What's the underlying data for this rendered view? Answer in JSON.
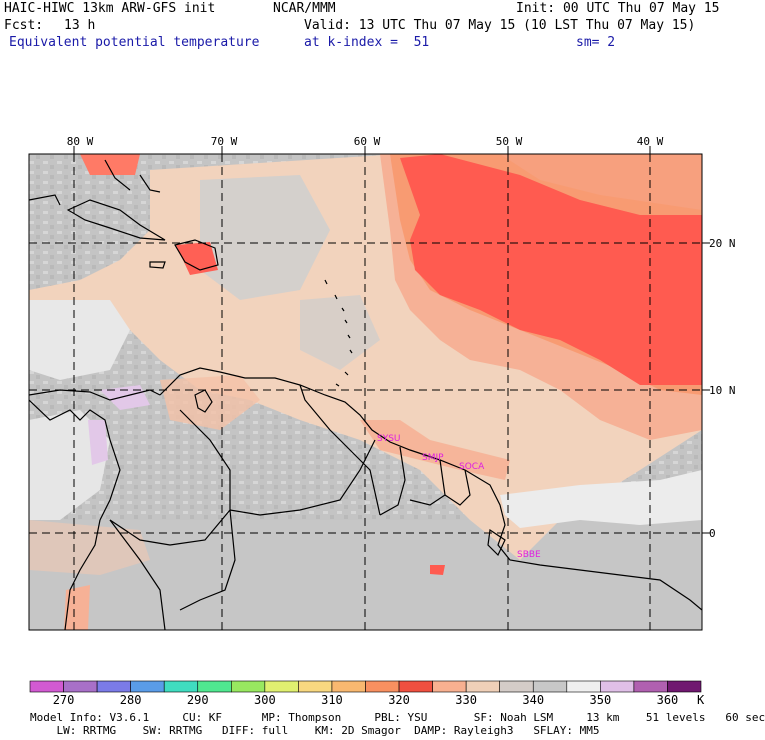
{
  "header": {
    "model_title": "HAIC-HIWC 13km ARW-GFS init",
    "org": "NCAR/MMM",
    "init": "Init: 00 UTC Thu 07 May 15",
    "fcst_label": "Fcst:",
    "fcst_value": "13 h",
    "valid": "Valid: 13 UTC Thu 07 May 15 (10 LST Thu 07 May 15)",
    "field": "Equivalent potential temperature",
    "level": "at k-index =  51",
    "smoothing": "sm= 2"
  },
  "map": {
    "lon_labels": [
      "80 W",
      "70 W",
      "60 W",
      "50 W",
      "40 W"
    ],
    "lat_labels": [
      "20 N",
      "10 N",
      "0"
    ],
    "station_labels": [
      "SYSU",
      "SMJP",
      "SOCA",
      "SBBE"
    ],
    "colors": {
      "station": "#e020e0",
      "grid": "#000000",
      "coast": "#000000"
    },
    "field_colors": {
      "gray_dark": "#bdbdbd",
      "gray_light": "#d2d2d2",
      "beige": "#f2d3bd",
      "salmon": "#f6b196",
      "orange_light": "#f89b72",
      "orange": "#f9836a",
      "red": "#ff5b50",
      "white": "#ececec",
      "lilac": "#e2c8e8"
    }
  },
  "colorbar": {
    "unit": "K",
    "labels": [
      "270",
      "280",
      "290",
      "300",
      "310",
      "320",
      "330",
      "340",
      "350",
      "360"
    ],
    "colors": [
      "#d25ad2",
      "#a870c8",
      "#7b7be8",
      "#5a9ce8",
      "#40dcc0",
      "#50e890",
      "#98e860",
      "#e0f070",
      "#f8d880",
      "#f8b870",
      "#f89060",
      "#f05040",
      "#f8b090",
      "#f0d0b8",
      "#d4ccc8",
      "#c8c8c8",
      "#f0f0f0",
      "#e0c0e8",
      "#b060b0",
      "#701870"
    ]
  },
  "footer": {
    "line1": "Model Info: V3.6.1     CU: KF      MP: Thompson     PBL: YSU       SF: Noah LSM     13 km    51 levels   60 sec",
    "line2": "    LW: RRTMG    SW: RRTMG   DIFF: full    KM: 2D Smagor  DAMP: Rayleigh3   SFLAY: MM5"
  }
}
